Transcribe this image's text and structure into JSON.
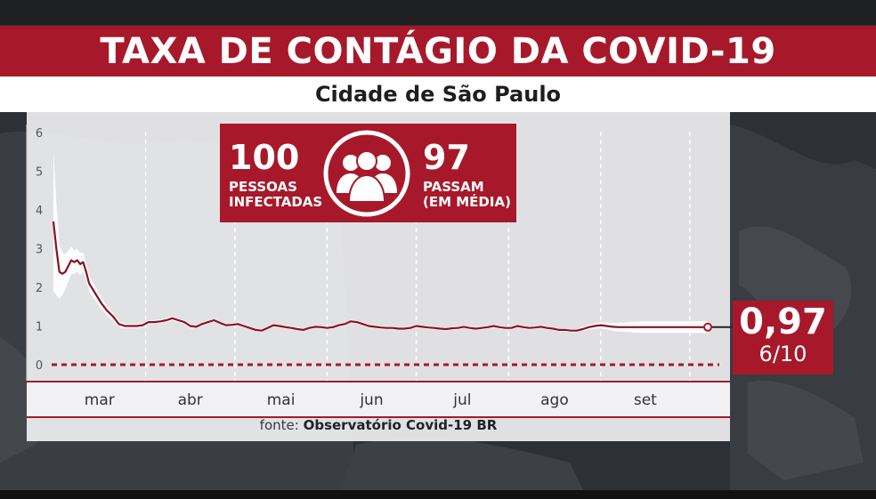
{
  "header": {
    "title": "TAXA DE CONTÁGIO DA COVID-19",
    "subtitle": "Cidade de São Paulo"
  },
  "info_box": {
    "infected_number": "100",
    "infected_line1": "PESSOAS",
    "infected_line2": "INFECTADAS",
    "passed_number": "97",
    "passed_line1": "PASSAM",
    "passed_line2": "(EM MÉDIA)",
    "icon": "people-group-icon"
  },
  "current_value": {
    "value": "0,97",
    "date": "6/10"
  },
  "source": {
    "prefix": "fonte:",
    "name": "Observatório Covid-19 BR"
  },
  "colors": {
    "brand_red": "#a7192a",
    "line": "#8c1020",
    "band": "#ffffff",
    "threshold": "#a7192a"
  },
  "chart_data": {
    "type": "line",
    "title": "TAXA DE CONTÁGIO DA COVID-19",
    "subtitle": "Cidade de São Paulo",
    "xlabel": "",
    "ylabel": "",
    "ylim": [
      0,
      6
    ],
    "yticks": [
      0,
      1,
      2,
      3,
      4,
      5,
      6
    ],
    "months": [
      "mar",
      "abr",
      "mai",
      "jun",
      "jul",
      "ago",
      "set"
    ],
    "threshold": 1,
    "zero_line_dashed": true,
    "grid": "vertical dashed month separators",
    "x_day_range": [
      0,
      220
    ],
    "month_separator_days": [
      31,
      61,
      92,
      122,
      153,
      184,
      214
    ],
    "series": [
      {
        "x": [
          0,
          1,
          2,
          3,
          4,
          5,
          6,
          7,
          8,
          9,
          10,
          11,
          12,
          14,
          16,
          18,
          20,
          22,
          24,
          26,
          28,
          30,
          32,
          34,
          36,
          38,
          40,
          42,
          44,
          46,
          48,
          50,
          52,
          54,
          56,
          58,
          60,
          62,
          64,
          66,
          68,
          70,
          72,
          74,
          76,
          78,
          80,
          82,
          84,
          86,
          88,
          90,
          92,
          94,
          96,
          98,
          100,
          102,
          104,
          106,
          108,
          110,
          112,
          114,
          116,
          118,
          120,
          122,
          124,
          126,
          128,
          130,
          132,
          134,
          136,
          138,
          140,
          142,
          144,
          146,
          148,
          150,
          152,
          154,
          156,
          158,
          160,
          162,
          164,
          166,
          168,
          170,
          172,
          174,
          176,
          178,
          180,
          182,
          184,
          186,
          188,
          190,
          192,
          194,
          196,
          198,
          200,
          202,
          204,
          206,
          208,
          210,
          212,
          214,
          216,
          218,
          220
        ],
        "values": [
          3.7,
          3.0,
          2.4,
          2.35,
          2.4,
          2.55,
          2.7,
          2.65,
          2.7,
          2.6,
          2.65,
          2.4,
          2.1,
          1.85,
          1.6,
          1.4,
          1.25,
          1.05,
          1.0,
          1.0,
          1.0,
          1.02,
          1.1,
          1.1,
          1.12,
          1.15,
          1.2,
          1.15,
          1.1,
          1.0,
          0.98,
          1.05,
          1.1,
          1.15,
          1.08,
          1.02,
          1.03,
          1.05,
          1.0,
          0.95,
          0.9,
          0.88,
          0.95,
          1.02,
          1.0,
          0.97,
          0.95,
          0.92,
          0.9,
          0.95,
          0.98,
          0.97,
          0.95,
          0.97,
          1.02,
          1.05,
          1.12,
          1.1,
          1.05,
          1.0,
          0.98,
          0.96,
          0.95,
          0.95,
          0.93,
          0.93,
          0.95,
          1.0,
          0.98,
          0.96,
          0.95,
          0.93,
          0.92,
          0.94,
          0.95,
          0.98,
          0.95,
          0.93,
          0.95,
          0.97,
          1.0,
          0.97,
          0.95,
          0.95,
          1.0,
          0.97,
          0.95,
          0.96,
          0.98,
          0.95,
          0.93,
          0.9,
          0.9,
          0.88,
          0.88,
          0.92,
          0.97,
          1.0,
          1.02,
          1.0,
          0.98,
          0.97,
          0.97,
          0.97,
          0.97,
          0.97,
          0.97,
          0.97,
          0.97,
          0.97,
          0.97,
          0.97,
          0.97,
          0.97,
          0.97,
          0.97,
          0.97
        ],
        "band_half_width": [
          1.8,
          1.2,
          0.7,
          0.55,
          0.45,
          0.4,
          0.35,
          0.3,
          0.3,
          0.28,
          0.25,
          0.22,
          0.2,
          0.18,
          0.15,
          0.12,
          0.1,
          0.08,
          0.06,
          0.05,
          0.05,
          0.05,
          0.05,
          0.05,
          0.05,
          0.05,
          0.05,
          0.05,
          0.05,
          0.05,
          0.04,
          0.04,
          0.04,
          0.04,
          0.04,
          0.04,
          0.04,
          0.04,
          0.04,
          0.04,
          0.04,
          0.04,
          0.04,
          0.04,
          0.04,
          0.04,
          0.04,
          0.04,
          0.04,
          0.04,
          0.04,
          0.04,
          0.04,
          0.04,
          0.04,
          0.04,
          0.04,
          0.04,
          0.04,
          0.04,
          0.04,
          0.04,
          0.04,
          0.04,
          0.04,
          0.04,
          0.04,
          0.04,
          0.04,
          0.04,
          0.04,
          0.04,
          0.04,
          0.04,
          0.04,
          0.04,
          0.04,
          0.04,
          0.04,
          0.04,
          0.04,
          0.04,
          0.04,
          0.04,
          0.04,
          0.04,
          0.04,
          0.04,
          0.04,
          0.04,
          0.04,
          0.04,
          0.04,
          0.04,
          0.04,
          0.05,
          0.06,
          0.07,
          0.08,
          0.09,
          0.1,
          0.11,
          0.12,
          0.13,
          0.14,
          0.15,
          0.15,
          0.15,
          0.15,
          0.15,
          0.15,
          0.15,
          0.15,
          0.15,
          0.15,
          0.15,
          0.15
        ]
      }
    ]
  }
}
